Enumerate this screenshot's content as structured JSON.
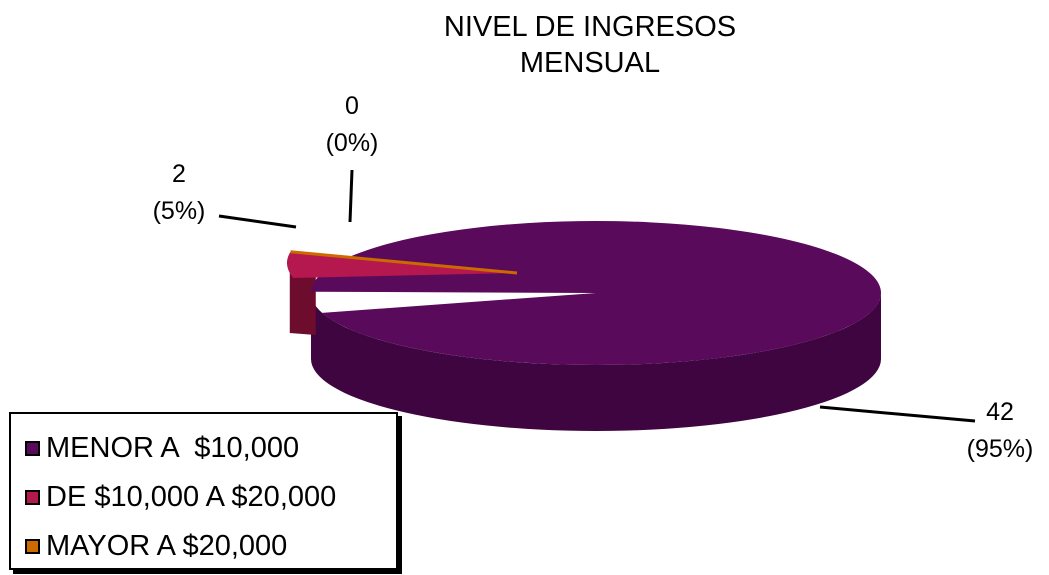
{
  "chart_data": {
    "type": "pie",
    "title_lines": [
      "NIVEL DE INGRESOS",
      "MENSUAL"
    ],
    "slices": [
      {
        "label": "MENOR A  $10,000",
        "value": 42,
        "percent_label": "(95%)",
        "color": "#5a0a5a",
        "side_color": "#3f0540"
      },
      {
        "label": "DE $10,000 A $20,000",
        "value": 2,
        "percent_label": "(5%)",
        "color": "#b5174f",
        "side_color": "#6e0c2e"
      },
      {
        "label": "MAYOR A $20,000",
        "value": 0,
        "percent_label": "(0%)",
        "color": "#cc6a00",
        "side_color": "#7a3e00"
      }
    ],
    "legend_position": "bottom-left"
  }
}
